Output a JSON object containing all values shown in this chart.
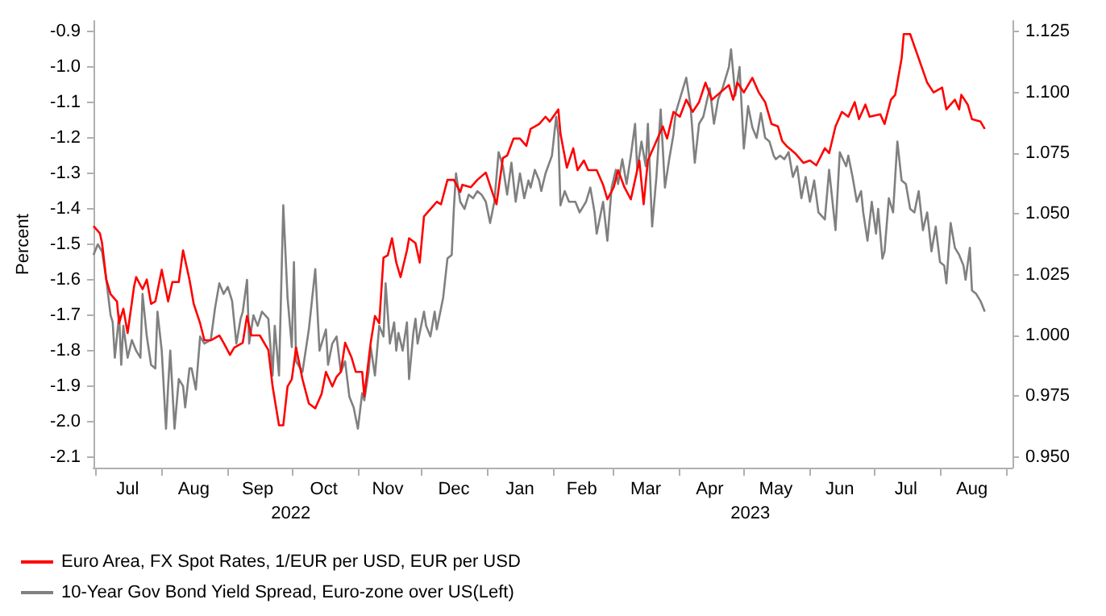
{
  "chart_data": {
    "type": "line",
    "ylabel": "Percent",
    "legend": "bottom left",
    "marker": "none",
    "line_style": "solid",
    "grid": false,
    "xlim": [
      "2022-06-30",
      "2023-09-04"
    ],
    "xticks": [
      {
        "value": "2022-07-01",
        "label": null
      },
      {
        "value": "2022-07-16",
        "label": "Jul"
      },
      {
        "value": "2022-08-01",
        "label": null
      },
      {
        "value": "2022-08-16",
        "label": "Aug"
      },
      {
        "value": "2022-09-01",
        "label": null
      },
      {
        "value": "2022-09-15",
        "label": "Sep"
      },
      {
        "value": "2022-10-01",
        "label": null
      },
      {
        "value": "2022-10-16",
        "label": "Oct"
      },
      {
        "value": "2022-11-01",
        "label": null
      },
      {
        "value": "2022-11-15",
        "label": "Nov"
      },
      {
        "value": "2022-12-01",
        "label": null
      },
      {
        "value": "2022-12-16",
        "label": "Dec"
      },
      {
        "value": "2023-01-01",
        "label": null
      },
      {
        "value": "2023-01-16",
        "label": "Jan"
      },
      {
        "value": "2023-02-01",
        "label": null
      },
      {
        "value": "2023-02-14",
        "label": "Feb"
      },
      {
        "value": "2023-03-01",
        "label": null
      },
      {
        "value": "2023-03-16",
        "label": "Mar"
      },
      {
        "value": "2023-04-01",
        "label": null
      },
      {
        "value": "2023-04-15",
        "label": "Apr"
      },
      {
        "value": "2023-05-01",
        "label": null
      },
      {
        "value": "2023-05-16",
        "label": "May"
      },
      {
        "value": "2023-06-01",
        "label": null
      },
      {
        "value": "2023-06-15",
        "label": "Jun"
      },
      {
        "value": "2023-07-01",
        "label": null
      },
      {
        "value": "2023-07-16",
        "label": "Jul"
      },
      {
        "value": "2023-08-01",
        "label": null
      },
      {
        "value": "2023-08-16",
        "label": "Aug"
      },
      {
        "value": "2023-09-01",
        "label": null
      }
    ],
    "ylim": [
      -2.13,
      -0.87
    ],
    "yticks": [
      -0.9,
      {
        "value": -1.0,
        "label": "-1.0"
      },
      -1.1,
      -1.2,
      -1.3,
      -1.4,
      -1.5,
      -1.6,
      -1.7,
      -1.8,
      -1.9,
      {
        "value": -2.0,
        "label": "-2.0"
      },
      -2.1
    ],
    "y2lim": [
      0.9456,
      1.1294
    ],
    "y2ticks": [
      {
        "value": 0.95,
        "label": "0.950"
      },
      0.975,
      {
        "value": 1.0,
        "label": "1.000"
      },
      1.025,
      {
        "value": 1.05,
        "label": "1.050"
      },
      1.075,
      {
        "value": 1.1,
        "label": "1.100"
      },
      1.125
    ],
    "annotations": [
      "2022",
      "2023"
    ],
    "series": [
      {
        "name": "Euro Area, FX Spot Rates, 1/EUR per USD, EUR per USD",
        "color": "#ff0000",
        "axis": "y2",
        "x": [
          "2022-06-30",
          "2022-07-03",
          "2022-07-04",
          "2022-07-06",
          "2022-07-08",
          "2022-07-11",
          "2022-07-12",
          "2022-07-14",
          "2022-07-16",
          "2022-07-19",
          "2022-07-20",
          "2022-07-23",
          "2022-07-25",
          "2022-07-27",
          "2022-07-29",
          "2022-08-01",
          "2022-08-04",
          "2022-08-06",
          "2022-08-09",
          "2022-08-11",
          "2022-08-14",
          "2022-08-16",
          "2022-08-19",
          "2022-08-21",
          "2022-08-24",
          "2022-08-28",
          "2022-08-30",
          "2022-09-02",
          "2022-09-04",
          "2022-09-08",
          "2022-09-10",
          "2022-09-12",
          "2022-09-16",
          "2022-09-20",
          "2022-09-22",
          "2022-09-25",
          "2022-09-27",
          "2022-09-29",
          "2022-10-01",
          "2022-10-03",
          "2022-10-06",
          "2022-10-09",
          "2022-10-12",
          "2022-10-15",
          "2022-10-17",
          "2022-10-20",
          "2022-10-22",
          "2022-10-24",
          "2022-10-26",
          "2022-10-29",
          "2022-10-31",
          "2022-11-03",
          "2022-11-04",
          "2022-11-07",
          "2022-11-09",
          "2022-11-11",
          "2022-11-13",
          "2022-11-15",
          "2022-11-17",
          "2022-11-19",
          "2022-11-21",
          "2022-11-24",
          "2022-11-25",
          "2022-11-28",
          "2022-11-30",
          "2022-12-02",
          "2022-12-05",
          "2022-12-08",
          "2022-12-10",
          "2022-12-13",
          "2022-12-16",
          "2022-12-19",
          "2022-12-20",
          "2022-12-24",
          "2022-12-27",
          "2022-12-31",
          "2023-01-03",
          "2023-01-05",
          "2023-01-08",
          "2023-01-10",
          "2023-01-13",
          "2023-01-16",
          "2023-01-19",
          "2023-01-21",
          "2023-01-25",
          "2023-01-28",
          "2023-01-30",
          "2023-02-03",
          "2023-02-04",
          "2023-02-07",
          "2023-02-10",
          "2023-02-12",
          "2023-02-15",
          "2023-02-17",
          "2023-02-21",
          "2023-02-24",
          "2023-02-26",
          "2023-03-01",
          "2023-03-03",
          "2023-03-06",
          "2023-03-09",
          "2023-03-11",
          "2023-03-13",
          "2023-03-15",
          "2023-03-17",
          "2023-03-20",
          "2023-03-24",
          "2023-03-26",
          "2023-03-29",
          "2023-04-01",
          "2023-04-04",
          "2023-04-07",
          "2023-04-10",
          "2023-04-13",
          "2023-04-16",
          "2023-04-20",
          "2023-04-24",
          "2023-04-26",
          "2023-04-28",
          "2023-05-01",
          "2023-05-05",
          "2023-05-08",
          "2023-05-11",
          "2023-05-14",
          "2023-05-17",
          "2023-05-19",
          "2023-05-21",
          "2023-05-25",
          "2023-05-29",
          "2023-06-01",
          "2023-06-04",
          "2023-06-08",
          "2023-06-10",
          "2023-06-13",
          "2023-06-16",
          "2023-06-19",
          "2023-06-22",
          "2023-06-24",
          "2023-06-27",
          "2023-06-29",
          "2023-07-04",
          "2023-07-06",
          "2023-07-09",
          "2023-07-11",
          "2023-07-14",
          "2023-07-15",
          "2023-07-18",
          "2023-07-22",
          "2023-07-26",
          "2023-07-29",
          "2023-08-02",
          "2023-08-04",
          "2023-08-08",
          "2023-08-10",
          "2023-08-11",
          "2023-08-14",
          "2023-08-16",
          "2023-08-20",
          "2023-08-22"
        ],
        "values": [
          1.045,
          1.042,
          1.038,
          1.023,
          1.017,
          1.014,
          1.005,
          1.011,
          1.001,
          1.02,
          1.024,
          1.019,
          1.023,
          1.013,
          1.014,
          1.027,
          1.014,
          1.022,
          1.022,
          1.035,
          1.023,
          1.013,
          1.005,
          0.998,
          0.998,
          1.0,
          0.997,
          0.992,
          0.995,
          0.997,
          1.008,
          1.0,
          1.0,
          0.994,
          0.979,
          0.963,
          0.963,
          0.979,
          0.982,
          0.995,
          0.982,
          0.972,
          0.97,
          0.976,
          0.985,
          0.979,
          0.983,
          0.985,
          0.997,
          0.991,
          0.985,
          0.985,
          0.975,
          0.997,
          1.008,
          1.005,
          1.032,
          1.033,
          1.04,
          1.03,
          1.024,
          1.035,
          1.04,
          1.038,
          1.03,
          1.049,
          1.052,
          1.055,
          1.054,
          1.064,
          1.064,
          1.059,
          1.062,
          1.061,
          1.064,
          1.067,
          1.059,
          1.054,
          1.073,
          1.074,
          1.081,
          1.081,
          1.078,
          1.085,
          1.087,
          1.09,
          1.088,
          1.093,
          1.083,
          1.069,
          1.077,
          1.068,
          1.072,
          1.068,
          1.068,
          1.062,
          1.056,
          1.061,
          1.068,
          1.061,
          1.056,
          1.064,
          1.072,
          1.054,
          1.072,
          1.078,
          1.086,
          1.081,
          1.092,
          1.09,
          1.097,
          1.092,
          1.096,
          1.104,
          1.097,
          1.1,
          1.103,
          1.097,
          1.104,
          1.1,
          1.106,
          1.1,
          1.096,
          1.087,
          1.086,
          1.08,
          1.078,
          1.075,
          1.071,
          1.072,
          1.07,
          1.077,
          1.075,
          1.086,
          1.092,
          1.09,
          1.096,
          1.089,
          1.095,
          1.09,
          1.091,
          1.087,
          1.097,
          1.099,
          1.114,
          1.124,
          1.124,
          1.114,
          1.104,
          1.1,
          1.102,
          1.093,
          1.097,
          1.093,
          1.099,
          1.095,
          1.089,
          1.088,
          1.085
        ]
      },
      {
        "name": "10-Year Gov Bond Yield Spread, Euro-zone over US(Left)",
        "color": "#808080",
        "x": [
          "2022-06-30",
          "2022-07-02",
          "2022-07-04",
          "2022-07-06",
          "2022-07-08",
          "2022-07-09",
          "2022-07-10",
          "2022-07-12",
          "2022-07-13",
          "2022-07-14",
          "2022-07-16",
          "2022-07-18",
          "2022-07-20",
          "2022-07-22",
          "2022-07-23",
          "2022-07-25",
          "2022-07-27",
          "2022-07-29",
          "2022-07-30",
          "2022-08-01",
          "2022-08-03",
          "2022-08-04",
          "2022-08-05",
          "2022-08-07",
          "2022-08-09",
          "2022-08-11",
          "2022-08-12",
          "2022-08-14",
          "2022-08-15",
          "2022-08-17",
          "2022-08-19",
          "2022-08-21",
          "2022-08-24",
          "2022-08-26",
          "2022-08-28",
          "2022-08-30",
          "2022-09-01",
          "2022-09-03",
          "2022-09-05",
          "2022-09-07",
          "2022-09-08",
          "2022-09-10",
          "2022-09-11",
          "2022-09-13",
          "2022-09-15",
          "2022-09-17",
          "2022-09-20",
          "2022-09-22",
          "2022-09-23",
          "2022-09-25",
          "2022-09-27",
          "2022-09-29",
          "2022-10-01",
          "2022-10-02",
          "2022-10-03",
          "2022-10-06",
          "2022-10-09",
          "2022-10-12",
          "2022-10-14",
          "2022-10-17",
          "2022-10-18",
          "2022-10-20",
          "2022-10-22",
          "2022-10-24",
          "2022-10-26",
          "2022-10-28",
          "2022-10-30",
          "2022-11-01",
          "2022-11-03",
          "2022-11-04",
          "2022-11-06",
          "2022-11-07",
          "2022-11-09",
          "2022-11-11",
          "2022-11-13",
          "2022-11-14",
          "2022-11-16",
          "2022-11-18",
          "2022-11-19",
          "2022-11-20",
          "2022-11-22",
          "2022-11-24",
          "2022-11-25",
          "2022-11-27",
          "2022-11-28",
          "2022-11-29",
          "2022-12-02",
          "2022-12-03",
          "2022-12-05",
          "2022-12-07",
          "2022-12-08",
          "2022-12-11",
          "2022-12-13",
          "2022-12-15",
          "2022-12-16",
          "2022-12-17",
          "2022-12-19",
          "2022-12-21",
          "2022-12-23",
          "2022-12-25",
          "2022-12-27",
          "2022-12-29",
          "2022-12-31",
          "2023-01-02",
          "2023-01-04",
          "2023-01-06",
          "2023-01-08",
          "2023-01-10",
          "2023-01-12",
          "2023-01-14",
          "2023-01-16",
          "2023-01-18",
          "2023-01-20",
          "2023-01-21",
          "2023-01-23",
          "2023-01-25",
          "2023-01-26",
          "2023-01-28",
          "2023-01-31",
          "2023-02-02",
          "2023-02-03",
          "2023-02-04",
          "2023-02-06",
          "2023-02-08",
          "2023-02-11",
          "2023-02-13",
          "2023-02-16",
          "2023-02-18",
          "2023-02-20",
          "2023-02-21",
          "2023-02-24",
          "2023-02-26",
          "2023-02-28",
          "2023-03-02",
          "2023-03-03",
          "2023-03-05",
          "2023-03-07",
          "2023-03-09",
          "2023-03-11",
          "2023-03-12",
          "2023-03-14",
          "2023-03-16",
          "2023-03-17",
          "2023-03-19",
          "2023-03-21",
          "2023-03-23",
          "2023-03-25",
          "2023-03-27",
          "2023-03-29",
          "2023-03-30",
          "2023-04-01",
          "2023-04-04",
          "2023-04-06",
          "2023-04-08",
          "2023-04-10",
          "2023-04-12",
          "2023-04-15",
          "2023-04-17",
          "2023-04-19",
          "2023-04-21",
          "2023-04-24",
          "2023-04-25",
          "2023-04-27",
          "2023-04-29",
          "2023-05-01",
          "2023-05-03",
          "2023-05-05",
          "2023-05-07",
          "2023-05-09",
          "2023-05-11",
          "2023-05-13",
          "2023-05-15",
          "2023-05-16",
          "2023-05-18",
          "2023-05-20",
          "2023-05-22",
          "2023-05-24",
          "2023-05-26",
          "2023-05-28",
          "2023-05-30",
          "2023-06-01",
          "2023-06-03",
          "2023-06-05",
          "2023-06-08",
          "2023-06-10",
          "2023-06-13",
          "2023-06-15",
          "2023-06-18",
          "2023-06-19",
          "2023-06-21",
          "2023-06-23",
          "2023-06-25",
          "2023-06-26",
          "2023-06-28",
          "2023-06-30",
          "2023-07-02",
          "2023-07-03",
          "2023-07-05",
          "2023-07-06",
          "2023-07-08",
          "2023-07-10",
          "2023-07-12",
          "2023-07-14",
          "2023-07-16",
          "2023-07-18",
          "2023-07-20",
          "2023-07-22",
          "2023-07-24",
          "2023-07-26",
          "2023-07-28",
          "2023-07-30",
          "2023-08-01",
          "2023-08-03",
          "2023-08-04",
          "2023-08-06",
          "2023-08-08",
          "2023-08-10",
          "2023-08-12",
          "2023-08-13",
          "2023-08-15",
          "2023-08-16",
          "2023-08-18",
          "2023-08-20",
          "2023-08-22"
        ],
        "values": [
          -1.53,
          -1.5,
          -1.52,
          -1.6,
          -1.7,
          -1.72,
          -1.82,
          -1.7,
          -1.84,
          -1.73,
          -1.82,
          -1.77,
          -1.8,
          -1.82,
          -1.64,
          -1.76,
          -1.84,
          -1.85,
          -1.69,
          -1.8,
          -2.02,
          -1.9,
          -1.8,
          -2.02,
          -1.88,
          -1.9,
          -1.96,
          -1.85,
          -1.85,
          -1.91,
          -1.76,
          -1.78,
          -1.77,
          -1.68,
          -1.61,
          -1.64,
          -1.62,
          -1.66,
          -1.78,
          -1.71,
          -1.69,
          -1.6,
          -1.78,
          -1.7,
          -1.73,
          -1.69,
          -1.71,
          -1.87,
          -1.73,
          -1.87,
          -1.39,
          -1.65,
          -1.79,
          -1.55,
          -1.83,
          -1.86,
          -1.74,
          -1.57,
          -1.8,
          -1.74,
          -1.84,
          -1.78,
          -1.76,
          -1.86,
          -1.83,
          -1.93,
          -1.96,
          -2.02,
          -1.92,
          -1.94,
          -1.86,
          -1.79,
          -1.87,
          -1.73,
          -1.76,
          -1.61,
          -1.78,
          -1.72,
          -1.8,
          -1.75,
          -1.8,
          -1.72,
          -1.88,
          -1.75,
          -1.71,
          -1.78,
          -1.69,
          -1.73,
          -1.76,
          -1.69,
          -1.74,
          -1.65,
          -1.54,
          -1.53,
          -1.4,
          -1.3,
          -1.38,
          -1.4,
          -1.36,
          -1.37,
          -1.35,
          -1.36,
          -1.38,
          -1.44,
          -1.38,
          -1.24,
          -1.28,
          -1.36,
          -1.27,
          -1.38,
          -1.3,
          -1.37,
          -1.32,
          -1.34,
          -1.29,
          -1.32,
          -1.35,
          -1.3,
          -1.25,
          -1.14,
          -1.19,
          -1.39,
          -1.35,
          -1.38,
          -1.38,
          -1.41,
          -1.38,
          -1.34,
          -1.41,
          -1.47,
          -1.38,
          -1.49,
          -1.34,
          -1.29,
          -1.33,
          -1.26,
          -1.33,
          -1.25,
          -1.16,
          -1.29,
          -1.21,
          -1.28,
          -1.16,
          -1.45,
          -1.31,
          -1.12,
          -1.34,
          -1.26,
          -1.19,
          -1.13,
          -1.09,
          -1.03,
          -1.11,
          -1.27,
          -1.16,
          -1.14,
          -1.06,
          -1.16,
          -1.09,
          -1.06,
          -1.0,
          -0.95,
          -1.08,
          -1.0,
          -1.23,
          -1.11,
          -1.17,
          -1.2,
          -1.13,
          -1.2,
          -1.21,
          -1.25,
          -1.26,
          -1.25,
          -1.26,
          -1.24,
          -1.31,
          -1.28,
          -1.37,
          -1.31,
          -1.38,
          -1.32,
          -1.41,
          -1.43,
          -1.29,
          -1.46,
          -1.24,
          -1.28,
          -1.25,
          -1.31,
          -1.38,
          -1.35,
          -1.41,
          -1.49,
          -1.38,
          -1.47,
          -1.4,
          -1.54,
          -1.52,
          -1.37,
          -1.41,
          -1.21,
          -1.32,
          -1.33,
          -1.4,
          -1.41,
          -1.35,
          -1.46,
          -1.41,
          -1.52,
          -1.45,
          -1.55,
          -1.56,
          -1.61,
          -1.44,
          -1.51,
          -1.53,
          -1.56,
          -1.6,
          -1.51,
          -1.63,
          -1.64,
          -1.66,
          -1.69
        ]
      }
    ]
  }
}
